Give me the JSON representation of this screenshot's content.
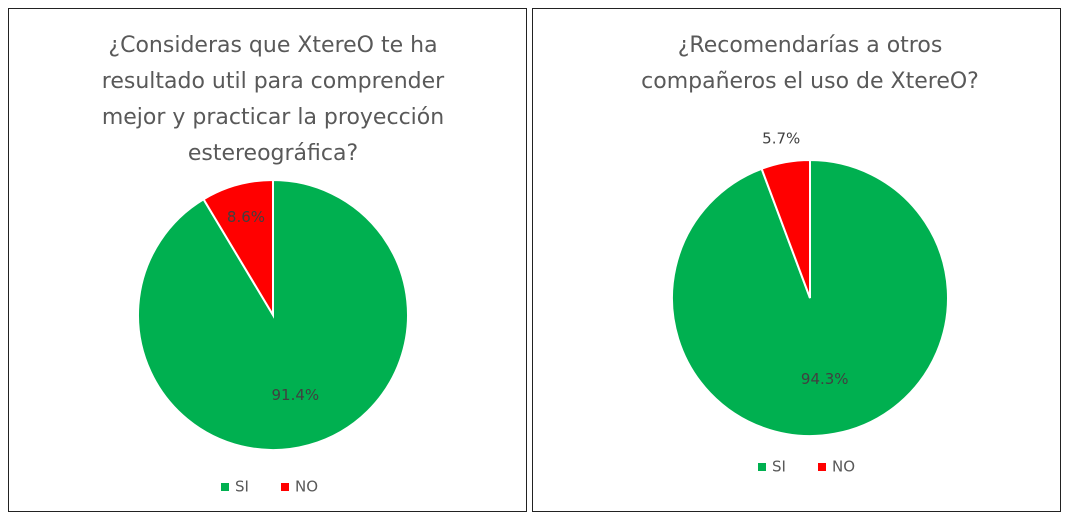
{
  "chart_data": [
    {
      "type": "pie",
      "title": [
        "¿Consideras que XtereO te ha",
        "resultado util para comprender",
        "mejor y practicar la proyección",
        "estereográfica?"
      ],
      "categories": [
        "SI",
        "NO"
      ],
      "values": [
        91.4,
        8.6
      ],
      "value_labels": [
        "91.4%",
        "8.6%"
      ],
      "colors": [
        "#00b050",
        "#ff0000"
      ],
      "legend": "bottom"
    },
    {
      "type": "pie",
      "title": [
        "¿Recomendarías a otros",
        "compañeros el uso de XtereO?"
      ],
      "categories": [
        "SI",
        "NO"
      ],
      "values": [
        94.3,
        5.7
      ],
      "value_labels": [
        "94.3%",
        "5.7%"
      ],
      "colors": [
        "#00b050",
        "#ff0000"
      ],
      "legend": "bottom"
    }
  ]
}
